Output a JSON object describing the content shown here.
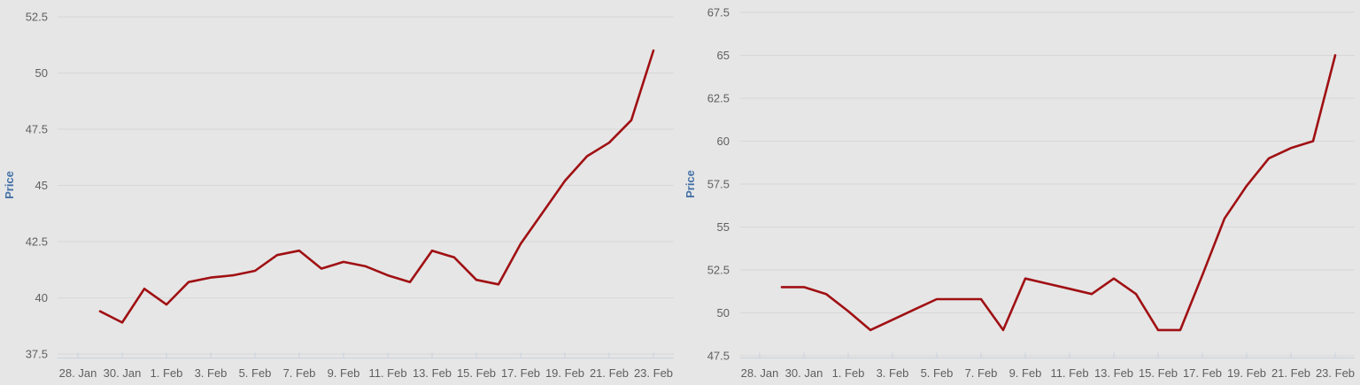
{
  "colors": {
    "background": "#e6e6e6",
    "gridline": "#d7d7d7",
    "axis": "#c8d1de",
    "tick_label": "#5f5f5f",
    "axis_title": "#4572a7",
    "series": "#a01013"
  },
  "chart_data": [
    {
      "type": "line",
      "title": "",
      "xlabel": "",
      "ylabel": "Price",
      "legend": "none",
      "grid": true,
      "ylim": [
        37.5,
        52.5
      ],
      "y_ticks": [
        37.5,
        40,
        42.5,
        45,
        47.5,
        50,
        52.5
      ],
      "x_tick_labels": [
        "28. Jan",
        "30. Jan",
        "1. Feb",
        "3. Feb",
        "5. Feb",
        "7. Feb",
        "9. Feb",
        "11. Feb",
        "13. Feb",
        "15. Feb",
        "17. Feb",
        "19. Feb",
        "21. Feb",
        "23. Feb"
      ],
      "x": [
        "29. Jan",
        "30. Jan",
        "31. Jan",
        "1. Feb",
        "2. Feb",
        "3. Feb",
        "4. Feb",
        "5. Feb",
        "6. Feb",
        "7. Feb",
        "8. Feb",
        "9. Feb",
        "10. Feb",
        "11. Feb",
        "12. Feb",
        "13. Feb",
        "14. Feb",
        "15. Feb",
        "16. Feb",
        "17. Feb",
        "18. Feb",
        "19. Feb",
        "20. Feb",
        "21. Feb",
        "22. Feb",
        "23. Feb"
      ],
      "series": [
        {
          "name": "Price",
          "values": [
            39.4,
            38.9,
            40.4,
            39.7,
            40.7,
            40.9,
            41.0,
            41.2,
            41.9,
            42.1,
            41.3,
            41.6,
            41.4,
            41.0,
            40.7,
            42.1,
            41.8,
            40.8,
            40.6,
            42.4,
            43.8,
            45.2,
            46.3,
            46.9,
            47.9,
            51.0
          ]
        }
      ]
    },
    {
      "type": "line",
      "title": "",
      "xlabel": "",
      "ylabel": "Price",
      "legend": "none",
      "grid": true,
      "ylim": [
        47.5,
        67.5
      ],
      "y_ticks": [
        47.5,
        50,
        52.5,
        55,
        57.5,
        60,
        62.5,
        65,
        67.5
      ],
      "x_tick_labels": [
        "28. Jan",
        "30. Jan",
        "1. Feb",
        "3. Feb",
        "5. Feb",
        "7. Feb",
        "9. Feb",
        "11. Feb",
        "13. Feb",
        "15. Feb",
        "17. Feb",
        "19. Feb",
        "21. Feb",
        "23. Feb"
      ],
      "x": [
        "29. Jan",
        "30. Jan",
        "31. Jan",
        "1. Feb",
        "2. Feb",
        "3. Feb",
        "4. Feb",
        "5. Feb",
        "6. Feb",
        "7. Feb",
        "8. Feb",
        "9. Feb",
        "10. Feb",
        "11. Feb",
        "12. Feb",
        "13. Feb",
        "14. Feb",
        "15. Feb",
        "16. Feb",
        "17. Feb",
        "18. Feb",
        "19. Feb",
        "20. Feb",
        "21. Feb",
        "22. Feb",
        "23. Feb"
      ],
      "series": [
        {
          "name": "Price",
          "values": [
            51.5,
            51.5,
            51.1,
            50.1,
            49.0,
            49.6,
            50.2,
            50.8,
            50.8,
            50.8,
            49.0,
            52.0,
            51.7,
            51.4,
            51.1,
            52.0,
            51.1,
            49.0,
            49.0,
            52.2,
            55.5,
            57.4,
            59.0,
            59.6,
            60.0,
            65.0
          ]
        }
      ]
    }
  ]
}
